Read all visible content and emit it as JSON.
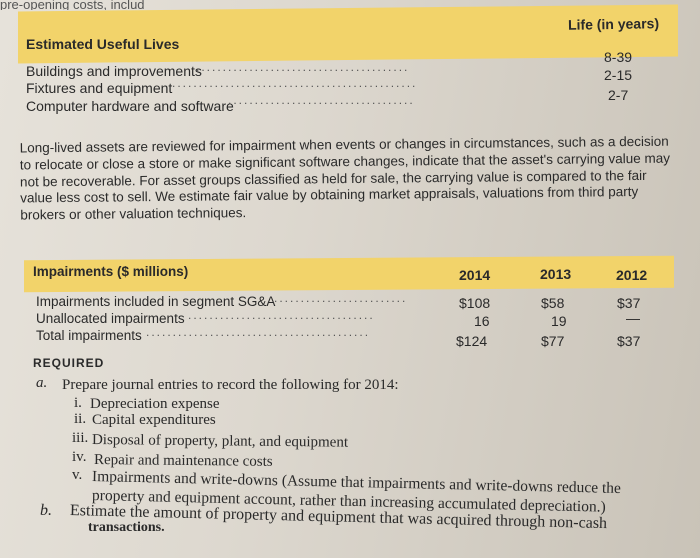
{
  "top_fragment": "pre-opening costs, includ",
  "useful_lives": {
    "header": "Estimated Useful Lives",
    "column": "Life (in years)",
    "rows": [
      {
        "label": "Buildings and improvements",
        "value": "8-39"
      },
      {
        "label": "Fixtures and equipment",
        "value": "2-15"
      },
      {
        "label": "Computer hardware and software",
        "value": "2-7"
      }
    ]
  },
  "paragraph": "Long-lived assets are reviewed for impairment when events or changes in circumstances, such as a decision to relocate or close a store or make significant software changes, indicate that the asset's carrying value may not be recoverable. For asset groups classified as held for sale, the carrying value is compared to the fair value less cost to sell. We estimate fair value by obtaining market appraisals, valuations from third party brokers or other valuation techniques.",
  "impairments": {
    "header": "Impairments ($ millions)",
    "years": [
      "2014",
      "2013",
      "2012"
    ],
    "rows": [
      {
        "label": "Impairments included in segment SG&A",
        "values": [
          "$108",
          "$58",
          "$37"
        ]
      },
      {
        "label": "Unallocated impairments",
        "values": [
          "16",
          "19",
          ""
        ]
      },
      {
        "label": "Total impairments",
        "values": [
          "$124",
          "$77",
          "$37"
        ]
      }
    ]
  },
  "required": {
    "title": "REQUIRED",
    "a_marker": "a.",
    "a_text": "Prepare journal entries to record the following for 2014:",
    "items": [
      {
        "n": "i.",
        "text": "Depreciation expense"
      },
      {
        "n": "ii.",
        "text": "Capital expenditures"
      },
      {
        "n": "iii.",
        "text": "Disposal of property, plant, and equipment"
      },
      {
        "n": "iv.",
        "text": "Repair and maintenance costs"
      },
      {
        "n": "v.",
        "text": "Impairments and write-downs (Assume that impairments and write-downs reduce the"
      }
    ],
    "v_cont": "property and equipment account, rather than increasing accumulated depreciation.)",
    "b_marker": "b.",
    "b_text": "Estimate the amount of property and equipment that was acquired through non-cash",
    "b_cont": "transactions."
  }
}
